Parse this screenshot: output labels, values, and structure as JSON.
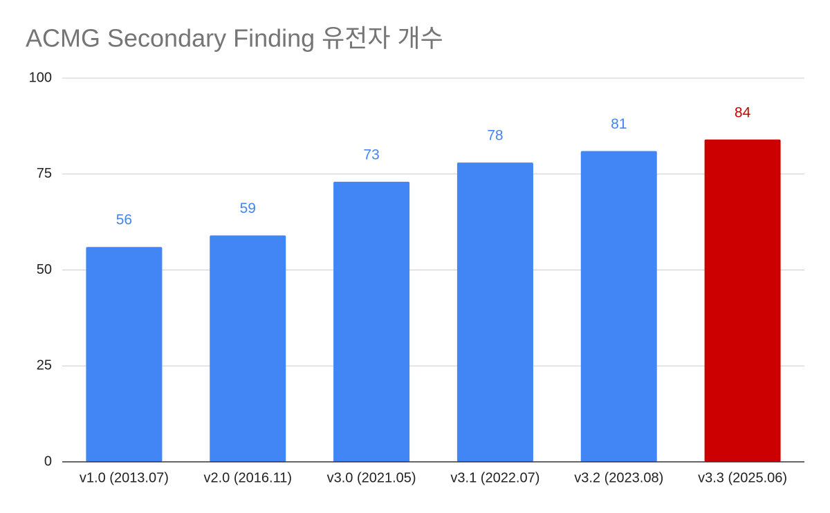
{
  "chart_data": {
    "type": "bar",
    "title": "ACMG Secondary Finding 유전자 개수",
    "categories": [
      "v1.0 (2013.07)",
      "v2.0 (2016.11)",
      "v3.0 (2021.05)",
      "v3.1 (2022.07)",
      "v3.2 (2023.08)",
      "v3.3 (2025.06)"
    ],
    "values": [
      56,
      59,
      73,
      78,
      81,
      84
    ],
    "colors": [
      "#4285f4",
      "#4285f4",
      "#4285f4",
      "#4285f4",
      "#4285f4",
      "#cc0000"
    ],
    "ylim": [
      0,
      100
    ],
    "yticks": [
      0,
      25,
      50,
      75,
      100
    ],
    "grid": true
  }
}
